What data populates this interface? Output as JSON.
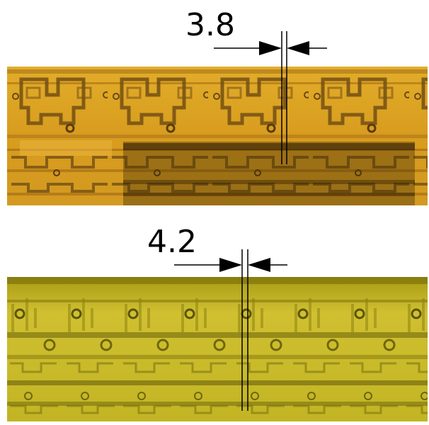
{
  "top_panel": {
    "measurement": "3.8",
    "tint": "#d8a21f"
  },
  "bottom_panel": {
    "measurement": "4.2",
    "tint": "#c2b21c"
  }
}
